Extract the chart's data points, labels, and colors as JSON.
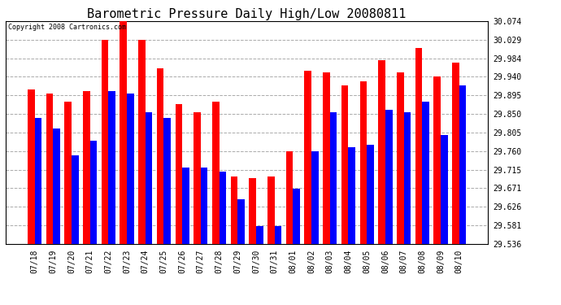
{
  "title": "Barometric Pressure Daily High/Low 20080811",
  "copyright": "Copyright 2008 Cartronics.com",
  "categories": [
    "07/18",
    "07/19",
    "07/20",
    "07/21",
    "07/22",
    "07/23",
    "07/24",
    "07/25",
    "07/26",
    "07/27",
    "07/28",
    "07/29",
    "07/30",
    "07/31",
    "08/01",
    "08/02",
    "08/03",
    "08/04",
    "08/05",
    "08/06",
    "08/07",
    "08/08",
    "08/09",
    "08/10"
  ],
  "highs": [
    29.91,
    29.9,
    29.88,
    29.905,
    30.03,
    30.074,
    30.03,
    29.96,
    29.875,
    29.855,
    29.88,
    29.7,
    29.695,
    29.7,
    29.76,
    29.955,
    29.95,
    29.92,
    29.93,
    29.98,
    29.95,
    30.01,
    29.94,
    29.975
  ],
  "lows": [
    29.84,
    29.815,
    29.75,
    29.785,
    29.905,
    29.9,
    29.855,
    29.84,
    29.72,
    29.72,
    29.71,
    29.645,
    29.58,
    29.58,
    29.67,
    29.76,
    29.855,
    29.77,
    29.775,
    29.86,
    29.855,
    29.88,
    29.8,
    29.92
  ],
  "high_color": "#FF0000",
  "low_color": "#0000FF",
  "bg_color": "#FFFFFF",
  "plot_bg_color": "#FFFFFF",
  "grid_color": "#AAAAAA",
  "ylim_min": 29.536,
  "ylim_max": 30.074,
  "yticks": [
    29.536,
    29.581,
    29.626,
    29.671,
    29.715,
    29.76,
    29.805,
    29.85,
    29.895,
    29.94,
    29.984,
    30.029,
    30.074
  ],
  "bar_width": 0.38,
  "title_fontsize": 11,
  "tick_fontsize": 7,
  "copyright_fontsize": 6
}
